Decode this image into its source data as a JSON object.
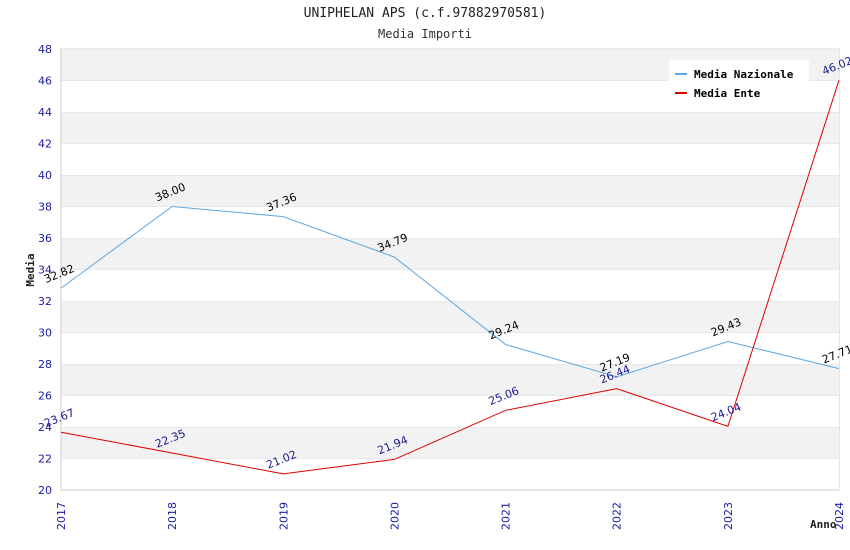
{
  "chart_data": {
    "type": "line",
    "title": "UNIPHELAN APS (c.f.97882970581)",
    "subtitle": "Media Importi",
    "xlabel": "Anno",
    "ylabel": "Media",
    "categories": [
      "2017",
      "2018",
      "2019",
      "2020",
      "2021",
      "2022",
      "2023",
      "2024"
    ],
    "ylim": [
      20,
      48
    ],
    "yticks": [
      20,
      22,
      24,
      26,
      28,
      30,
      32,
      34,
      36,
      38,
      40,
      42,
      44,
      46,
      48
    ],
    "grid": "horizontal bands",
    "legend_position": "top-right",
    "series": [
      {
        "name": "Media Nazionale",
        "color": "#5fa8e0",
        "label_color": "#000000",
        "values": [
          32.82,
          38.0,
          37.36,
          34.79,
          29.24,
          27.19,
          29.43,
          27.71
        ],
        "labels": [
          "32.82",
          "38.00",
          "37.36",
          "34.79",
          "29.24",
          "27.19",
          "29.43",
          "27.71"
        ]
      },
      {
        "name": "Media Ente",
        "color": "#dd0000",
        "label_color": "#1a1a8c",
        "values": [
          23.67,
          22.35,
          21.02,
          21.94,
          25.06,
          26.44,
          24.04,
          46.02
        ],
        "labels": [
          "23.67",
          "22.35",
          "21.02",
          "21.94",
          "25.06",
          "26.44",
          "24.04",
          "46.02"
        ]
      }
    ]
  }
}
